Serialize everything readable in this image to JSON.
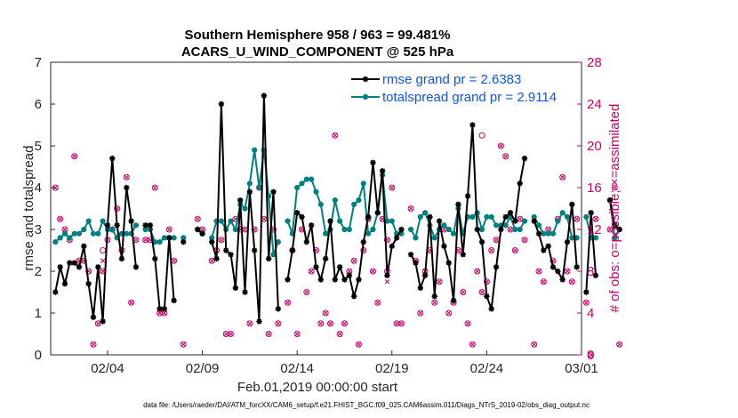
{
  "chart_data": {
    "type": "line",
    "title_line1": "Southern Hemisphere 958 / 963 = 99.481%",
    "title_line2": "ACARS_U_WIND_COMPONENT @ 525 hPa",
    "ylabel": "rmse and totalspread",
    "ylabel_right": "# of obs: o=possible; ×=assimilated",
    "xlabel": "Feb.01,2019 00:00:00 start",
    "footnote": "data file: /Users/raeder/DAI/ATM_forcXX/CAM6_setup/f.e21.FHIST_BGC.f09_025.CAM6assim.011/Diags_NTrS_2019-02/obs_diag_output.nc",
    "x_range_days": [
      0,
      28
    ],
    "ylim": [
      0,
      7
    ],
    "y_right_lim": [
      0,
      28
    ],
    "y_ticks": [
      "0",
      "1",
      "2",
      "3",
      "4",
      "5",
      "6",
      "7"
    ],
    "y_right_ticks": [
      "0",
      "4",
      "8",
      "12",
      "16",
      "20",
      "24",
      "28"
    ],
    "x_ticks": [
      {
        "label": "02/04",
        "day": 3
      },
      {
        "label": "02/09",
        "day": 8
      },
      {
        "label": "02/14",
        "day": 13
      },
      {
        "label": "02/19",
        "day": 18
      },
      {
        "label": "02/24",
        "day": 23
      },
      {
        "label": "03/01",
        "day": 28
      }
    ],
    "colors": {
      "rmse": "#000000",
      "spread": "#008080",
      "obs": "#cc0066",
      "legend_text": "#1155dd"
    },
    "series": [
      {
        "name": "rmse",
        "legend": "rmse grand pr = 2.6383",
        "values": [
          1.5,
          2.1,
          1.7,
          2.2,
          2.2,
          2.1,
          2.6,
          1.7,
          0.9,
          2.1,
          0.8,
          3.1,
          4.7,
          3.1,
          2.3,
          4.0,
          3.2,
          2.1,
          null,
          3.1,
          3.1,
          2.3,
          1.1,
          1.1,
          2.8,
          1.3,
          null,
          2.7,
          null,
          null,
          3.0,
          2.9,
          null,
          2.7,
          2.3,
          6.0,
          2.5,
          2.4,
          1.6,
          3.7,
          1.5,
          3.9,
          2.5,
          0.8,
          6.2,
          2.3,
          3.9,
          1.1,
          null,
          1.8,
          2.5,
          3.4,
          3.3,
          2.7,
          3.1,
          2.1,
          1.8,
          2.3,
          3.2,
          1.8,
          2.1,
          1.8,
          1.9,
          1.4,
          1.8,
          2.7,
          3.3,
          4.6,
          3.4,
          4.4,
          1.9,
          2.6,
          2.8,
          3.0,
          null,
          2.4,
          2.2,
          1.6,
          1.9,
          3.3,
          1.4,
          3.2,
          2.6,
          2.2,
          1.3,
          3.6,
          2.4,
          3.8,
          5.5,
          3.0,
          2.7,
          1.4,
          1.1,
          2.1,
          3.0,
          3.3,
          3.4,
          3.2,
          4.1,
          4.7,
          null,
          3.2,
          2.9,
          2.5,
          2.6,
          2.1,
          2.0,
          1.8,
          2.7,
          3.6,
          2.1,
          null,
          1.5,
          3.4,
          1.9,
          null,
          null,
          3.7,
          3.1,
          3.0
        ],
        "values_start_day": 0.25
      },
      {
        "name": "totalspread",
        "legend": "totalspread grand pr = 2.9114",
        "values": [
          2.7,
          2.8,
          2.9,
          2.8,
          2.9,
          2.9,
          3.0,
          3.2,
          2.9,
          2.9,
          3.2,
          3.0,
          3.0,
          2.8,
          2.9,
          2.9,
          2.9,
          3.1,
          null,
          3.0,
          3.0,
          2.7,
          2.7,
          2.8,
          2.8,
          2.8,
          null,
          2.8,
          null,
          null,
          3.0,
          2.9,
          null,
          2.8,
          3.2,
          3.2,
          3.0,
          3.2,
          3.0,
          3.6,
          3.5,
          4.1,
          4.9,
          4.0,
          4.9,
          3.8,
          2.4,
          2.7,
          null,
          3.2,
          2.9,
          4.0,
          4.1,
          4.2,
          4.2,
          3.9,
          3.6,
          2.9,
          3.0,
          3.7,
          3.2,
          3.0,
          3.0,
          3.6,
          3.7,
          4.1,
          2.9,
          3.0,
          3.4,
          4.3,
          3.2,
          3.2,
          2.9,
          2.9,
          null,
          3.0,
          2.8,
          3.3,
          3.4,
          3.1,
          2.8,
          3.0,
          3.1,
          3.0,
          2.9,
          3.5,
          2.9,
          3.3,
          3.3,
          3.4,
          3.0,
          3.3,
          3.3,
          3.1,
          3.1,
          3.1,
          3.3,
          3.0,
          3.0,
          3.2,
          null,
          3.3,
          3.1,
          2.9,
          2.9,
          2.9,
          3.2,
          3.4,
          3.3,
          2.8,
          2.8,
          null,
          3.3,
          2.8,
          2.8,
          null,
          null,
          3.7,
          2.8,
          3.0
        ],
        "values_start_day": 0.25
      }
    ],
    "obs_possible": [
      16,
      13,
      12,
      11,
      19,
      9,
      9,
      8,
      1,
      3,
      8,
      11,
      12,
      14,
      10,
      17,
      5,
      11,
      null,
      11,
      11,
      16,
      4,
      4,
      12,
      9,
      null,
      1,
      null,
      null,
      13,
      12,
      null,
      9,
      10,
      11,
      2,
      2,
      13,
      12,
      12,
      3,
      12,
      16,
      13,
      2,
      12,
      3,
      null,
      5,
      10,
      2,
      12,
      6,
      8,
      10,
      3,
      4,
      3,
      21,
      2,
      3,
      8,
      9,
      1,
      10,
      13,
      8,
      5,
      13,
      11,
      16,
      3,
      3,
      null,
      14,
      9,
      4,
      8,
      10,
      5,
      7,
      12,
      4,
      5,
      10,
      6,
      3,
      1,
      8,
      6,
      7,
      10,
      11,
      20,
      19,
      12,
      10,
      13,
      11,
      null,
      1,
      8,
      7,
      12,
      9,
      13,
      17,
      8,
      7,
      13,
      null,
      5,
      0,
      13,
      null,
      null,
      12,
      16,
      1
    ],
    "obs_assimilated": [
      16,
      13,
      12,
      11,
      19,
      9,
      9,
      8,
      1,
      3,
      8,
      11,
      12,
      14,
      10,
      17,
      5,
      11,
      null,
      11,
      11,
      16,
      4,
      4,
      12,
      9,
      null,
      1,
      null,
      null,
      13,
      12,
      null,
      9,
      10,
      11,
      2,
      2,
      13,
      12,
      12,
      3,
      12,
      16,
      13,
      2,
      12,
      3,
      null,
      5,
      10,
      2,
      12,
      6,
      8,
      10,
      3,
      4,
      3,
      21,
      2,
      3,
      8,
      9,
      1,
      10,
      13,
      8,
      5,
      13,
      11,
      16,
      3,
      3,
      null,
      14,
      9,
      4,
      8,
      10,
      5,
      7,
      12,
      4,
      5,
      10,
      6,
      3,
      1,
      8,
      6,
      7,
      10,
      11,
      20,
      19,
      12,
      10,
      13,
      11,
      null,
      1,
      8,
      7,
      12,
      9,
      13,
      17,
      8,
      7,
      13,
      null,
      5,
      0,
      13,
      null,
      null,
      12,
      16,
      1
    ],
    "extra_possible_only": [
      {
        "day": 2.75,
        "value": 10
      },
      {
        "day": 17.75,
        "value": 8
      },
      {
        "day": 22.75,
        "value": 21
      }
    ],
    "extra_assimilated_only": [
      {
        "day": 2.75,
        "value": 9
      },
      {
        "day": 17.75,
        "value": 7
      }
    ]
  }
}
